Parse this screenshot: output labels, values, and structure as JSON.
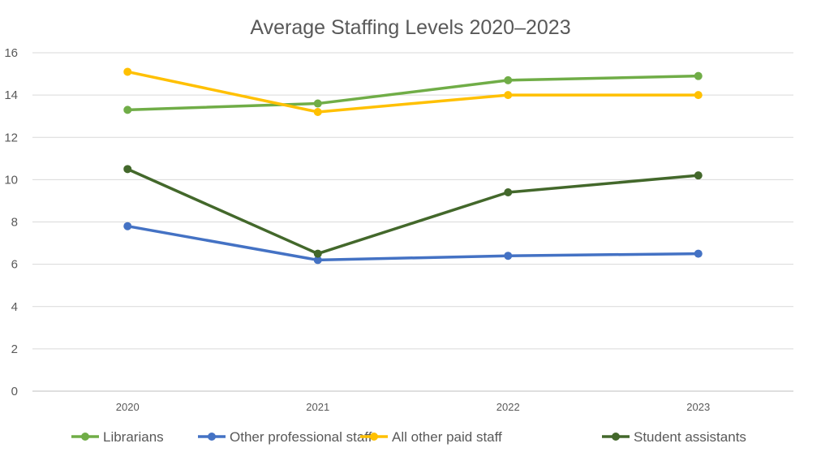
{
  "chart_data": {
    "type": "line",
    "title": "Average Staffing Levels 2020–2023",
    "xlabel": "",
    "ylabel": "",
    "categories": [
      "2020",
      "2021",
      "2022",
      "2023"
    ],
    "ylim": [
      0,
      16
    ],
    "yticks": [
      "0",
      "2",
      "4",
      "6",
      "8",
      "10",
      "12",
      "14",
      "16"
    ],
    "grid": true,
    "legend_placement": "bottom",
    "series": [
      {
        "name": "Librarians",
        "color": "#70AD47",
        "values": [
          13.3,
          13.6,
          14.7,
          14.9
        ]
      },
      {
        "name": "Other professional staff",
        "color": "#4472C4",
        "values": [
          7.8,
          6.2,
          6.4,
          6.5
        ]
      },
      {
        "name": "All other paid staff",
        "color": "#FFC000",
        "values": [
          15.1,
          13.2,
          14.0,
          14.0
        ]
      },
      {
        "name": "Student assistants",
        "color": "#43682B",
        "values": [
          10.5,
          6.5,
          9.4,
          10.2
        ]
      }
    ]
  }
}
